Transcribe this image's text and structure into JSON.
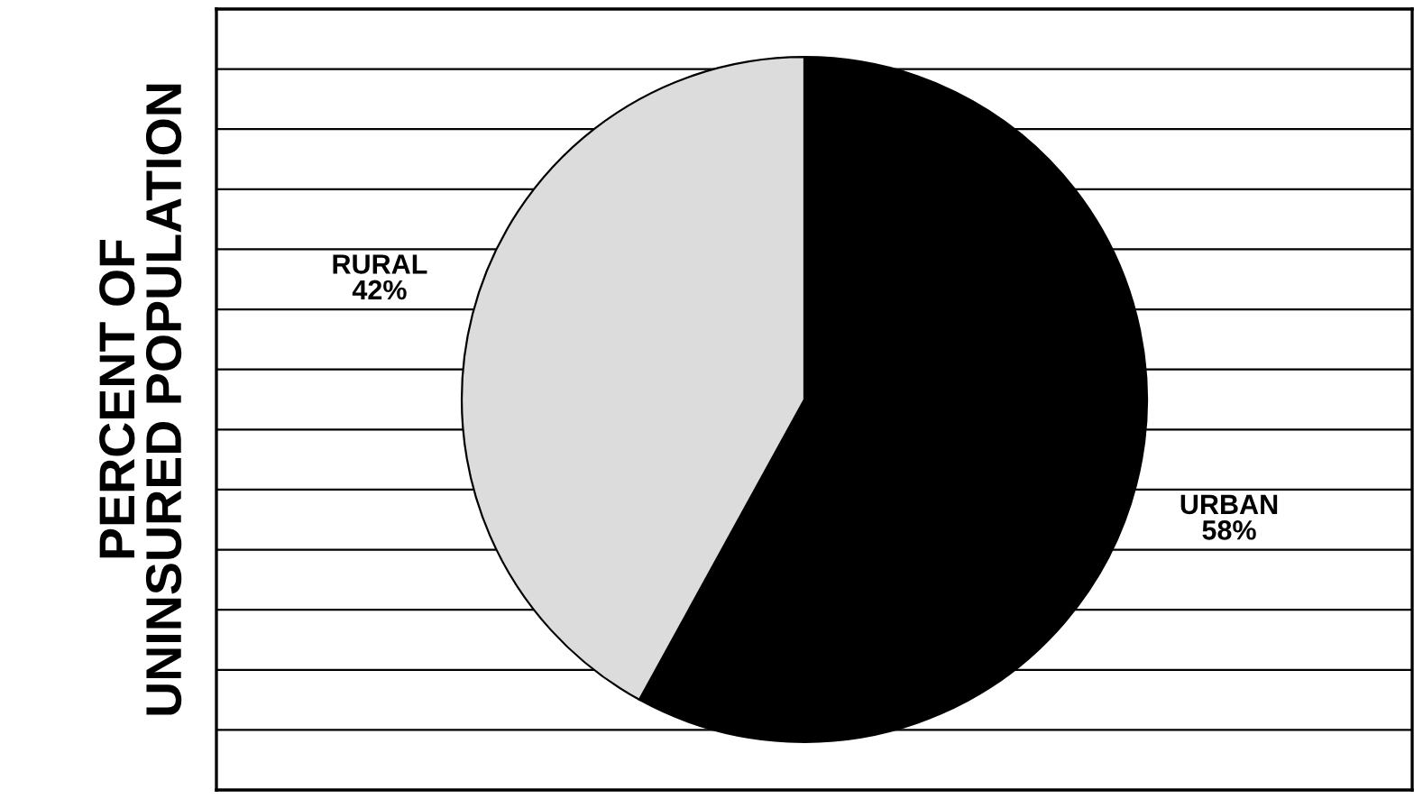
{
  "chart_data": {
    "type": "pie",
    "ylabel": "PERCENT OF\nUNINSURED POPULATION",
    "categories": [
      "URBAN",
      "RURAL"
    ],
    "values": [
      58,
      42
    ],
    "colors": [
      "#000000",
      "#dcdcdc"
    ],
    "value_labels": [
      "58%",
      "42%"
    ],
    "grid": true
  }
}
